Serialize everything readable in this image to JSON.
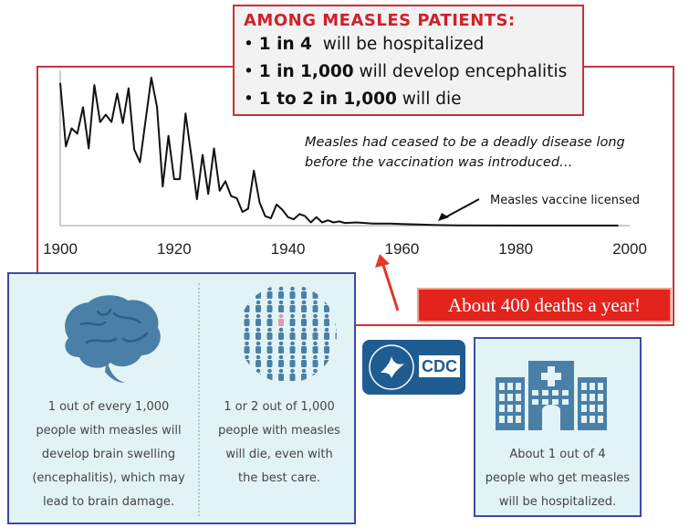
{
  "chart_data": {
    "type": "line",
    "title": "",
    "xlabel": "",
    "ylabel": "",
    "xlim": [
      1900,
      2000
    ],
    "ylim": [
      0,
      14000
    ],
    "x_ticks": [
      1900,
      1920,
      1940,
      1960,
      1980,
      2000
    ],
    "x": [
      1900,
      1901,
      1902,
      1903,
      1904,
      1905,
      1906,
      1907,
      1908,
      1909,
      1910,
      1911,
      1912,
      1913,
      1914,
      1915,
      1916,
      1917,
      1918,
      1919,
      1920,
      1921,
      1922,
      1923,
      1924,
      1925,
      1926,
      1927,
      1928,
      1929,
      1930,
      1931,
      1932,
      1933,
      1934,
      1935,
      1936,
      1937,
      1938,
      1939,
      1940,
      1941,
      1942,
      1943,
      1944,
      1945,
      1946,
      1947,
      1948,
      1949,
      1950,
      1952,
      1955,
      1958,
      1960,
      1963,
      1966,
      1970,
      1980,
      1990,
      1998
    ],
    "series": [
      {
        "values": [
          13500,
          7500,
          9200,
          8700,
          11200,
          7300,
          13300,
          9800,
          10500,
          9800,
          12500,
          9700,
          13000,
          7200,
          6000,
          10000,
          14000,
          11200,
          3700,
          8500,
          4400,
          4400,
          10600,
          6700,
          2500,
          6700,
          3000,
          7300,
          3300,
          4200,
          2800,
          2600,
          1300,
          1600,
          5200,
          2200,
          900,
          700,
          2000,
          1500,
          800,
          600,
          1100,
          900,
          300,
          800,
          300,
          500,
          300,
          400,
          250,
          300,
          200,
          200,
          150,
          100,
          50,
          30,
          10,
          10,
          5
        ]
      }
    ],
    "annotations": {
      "note": "Measles had ceased to be a deadly disease long before the vaccination was introduced…",
      "vaccine": "Measles vaccine licensed"
    }
  },
  "stats_box": {
    "title": "AMONG MEASLES PATIENTS:",
    "line1": {
      "bold": "1 in 4",
      "rest": "will be hospitalized"
    },
    "line2": {
      "bold": "1 in 1,000",
      "rest": "will develop encephalitis"
    },
    "line3": {
      "bold": "1 to 2 in 1,000",
      "rest": "will die"
    }
  },
  "deaths_banner": "About 400 deaths a year!",
  "info_left": {
    "brain": [
      "1 out of every 1,000",
      "people with measles will",
      "develop brain swelling",
      "(encephalitis), which may",
      "lead to brain damage."
    ],
    "deaths": [
      "1 or 2 out of 1,000",
      "people with measles",
      "will die, even with",
      "the best care."
    ]
  },
  "info_right": {
    "hospital": [
      "About 1 out of 4",
      "people who get measles",
      "will be hospitalized."
    ]
  },
  "cdc_logo": {
    "text": "CDC"
  },
  "colors": {
    "frame_red": "#c8323a",
    "title_red": "#d0202a",
    "banner_red": "#e3241d",
    "arrow_red": "#e0382a",
    "panel_blue_border": "#3f49a6",
    "panel_bg": "#e2f3f6",
    "icon_blue": "#4a7fa8",
    "cdc_blue": "#1f5c92"
  }
}
